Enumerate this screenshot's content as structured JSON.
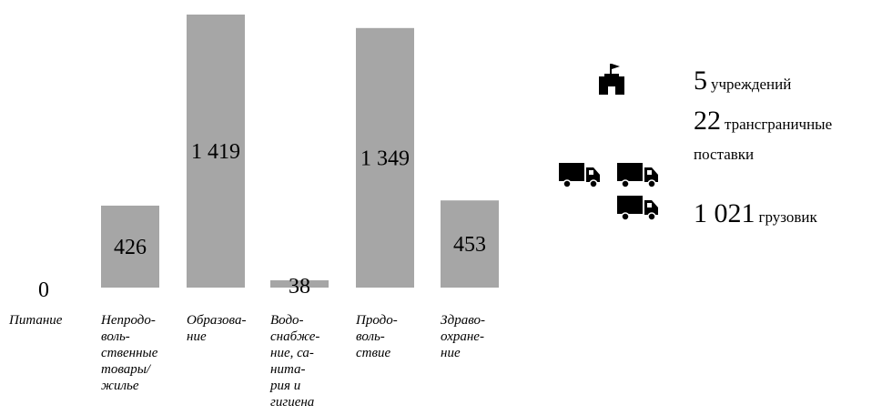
{
  "chart_data": {
    "type": "bar",
    "categories": [
      [
        "Питание"
      ],
      [
        "Непродо-",
        "воль-",
        "ственные",
        "товары/",
        "жилье"
      ],
      [
        "Образова-",
        "ние"
      ],
      [
        "Водо-",
        "снабже-",
        "ние, са-",
        "нита-",
        "рия и",
        "гигиена"
      ],
      [
        "Продо-",
        "воль-",
        "ствие"
      ],
      [
        "Здраво-",
        "охране-",
        "ние"
      ]
    ],
    "values": [
      0,
      426,
      1419,
      38,
      1349,
      453
    ],
    "value_labels": [
      "0",
      "426",
      "1 419",
      "38",
      "1 349",
      "453"
    ],
    "ylim": [
      0,
      1419
    ],
    "bar_color": "#a6a6a6",
    "grid": false,
    "legend": "none"
  },
  "stats": {
    "institutions": {
      "number": "5",
      "label": "учреждений",
      "icon": "building-flag-icon"
    },
    "crossborder": {
      "number": "22",
      "label": "трансграничные",
      "label2": "поставки",
      "icon": "truck-icon"
    },
    "trucks": {
      "number": "1 021",
      "label": "грузовик",
      "icon": "truck-icon"
    }
  },
  "colors": {
    "bar": "#a6a6a6",
    "icon": "#000000",
    "text": "#000000"
  }
}
